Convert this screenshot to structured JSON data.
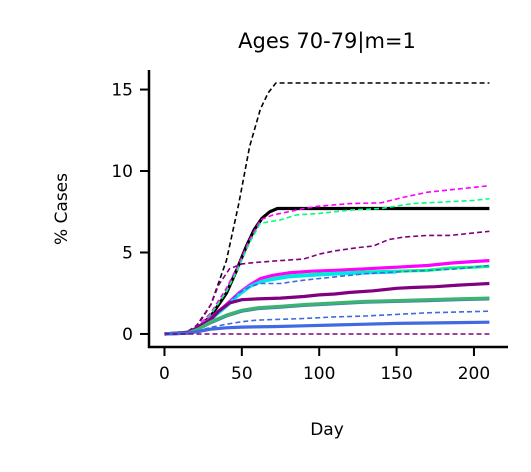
{
  "chart_data": {
    "type": "line",
    "title": "Ages 70-79|m=1",
    "xlabel": "Day",
    "ylabel": "% Cases",
    "xlim": [
      -10,
      222
    ],
    "ylim": [
      -0.8,
      16.2
    ],
    "xticks": [
      0,
      50,
      100,
      150,
      200
    ],
    "yticks": [
      0,
      5,
      10,
      15
    ],
    "grid": false,
    "legend": "none",
    "series": [
      {
        "color": "#000000",
        "style": "dashed",
        "points": [
          [
            0,
            0
          ],
          [
            14,
            0.1
          ],
          [
            20,
            0.4
          ],
          [
            30,
            1.8
          ],
          [
            40,
            4.5
          ],
          [
            48,
            8
          ],
          [
            55,
            11.5
          ],
          [
            62,
            13.8
          ],
          [
            67,
            14.8
          ],
          [
            72,
            15.4
          ],
          [
            80,
            15.4
          ],
          [
            210,
            15.4
          ]
        ]
      },
      {
        "color": "#000000",
        "style": "solid",
        "points": [
          [
            0,
            0
          ],
          [
            15,
            0.1
          ],
          [
            22,
            0.4
          ],
          [
            30,
            1.1
          ],
          [
            40,
            2.5
          ],
          [
            47,
            4.0
          ],
          [
            53,
            5.4
          ],
          [
            58,
            6.4
          ],
          [
            63,
            7.1
          ],
          [
            68,
            7.5
          ],
          [
            73,
            7.7
          ],
          [
            100,
            7.7
          ],
          [
            150,
            7.7
          ],
          [
            210,
            7.7
          ]
        ]
      },
      {
        "color": "#ff00ff",
        "style": "dashed",
        "points": [
          [
            0,
            0
          ],
          [
            15,
            0.1
          ],
          [
            22,
            0.5
          ],
          [
            30,
            1.3
          ],
          [
            40,
            2.8
          ],
          [
            48,
            4.3
          ],
          [
            55,
            5.8
          ],
          [
            62,
            7.0
          ],
          [
            70,
            7.3
          ],
          [
            80,
            7.5
          ],
          [
            90,
            7.7
          ],
          [
            100,
            7.85
          ],
          [
            120,
            8.0
          ],
          [
            140,
            8.05
          ],
          [
            155,
            8.4
          ],
          [
            170,
            8.7
          ],
          [
            185,
            8.85
          ],
          [
            200,
            9.0
          ],
          [
            210,
            9.1
          ]
        ]
      },
      {
        "color": "#00ff7f",
        "style": "dashed",
        "points": [
          [
            0,
            0
          ],
          [
            15,
            0.1
          ],
          [
            22,
            0.4
          ],
          [
            30,
            1.2
          ],
          [
            40,
            2.6
          ],
          [
            48,
            4.1
          ],
          [
            55,
            5.6
          ],
          [
            62,
            6.8
          ],
          [
            75,
            7.0
          ],
          [
            85,
            7.3
          ],
          [
            100,
            7.4
          ],
          [
            120,
            7.6
          ],
          [
            140,
            7.7
          ],
          [
            160,
            8.0
          ],
          [
            180,
            8.1
          ],
          [
            200,
            8.2
          ],
          [
            210,
            8.3
          ]
        ]
      },
      {
        "color": "#800080",
        "style": "dashed",
        "points": [
          [
            0,
            0
          ],
          [
            14,
            0.1
          ],
          [
            22,
            0.6
          ],
          [
            30,
            1.8
          ],
          [
            35,
            3.0
          ],
          [
            42,
            4.0
          ],
          [
            50,
            4.3
          ],
          [
            60,
            4.4
          ],
          [
            75,
            4.5
          ],
          [
            90,
            4.6
          ],
          [
            100,
            4.9
          ],
          [
            110,
            5.1
          ],
          [
            125,
            5.3
          ],
          [
            135,
            5.4
          ],
          [
            145,
            5.8
          ],
          [
            155,
            5.95
          ],
          [
            170,
            6.05
          ],
          [
            185,
            6.05
          ],
          [
            200,
            6.2
          ],
          [
            210,
            6.3
          ]
        ]
      },
      {
        "color": "#ff00ff",
        "style": "solid",
        "points": [
          [
            0,
            0
          ],
          [
            15,
            0.1
          ],
          [
            22,
            0.4
          ],
          [
            30,
            1.0
          ],
          [
            40,
            1.8
          ],
          [
            48,
            2.5
          ],
          [
            55,
            3.0
          ],
          [
            62,
            3.4
          ],
          [
            70,
            3.6
          ],
          [
            80,
            3.75
          ],
          [
            95,
            3.85
          ],
          [
            110,
            3.9
          ],
          [
            130,
            4.0
          ],
          [
            150,
            4.1
          ],
          [
            170,
            4.2
          ],
          [
            185,
            4.35
          ],
          [
            200,
            4.45
          ],
          [
            210,
            4.5
          ]
        ]
      },
      {
        "color": "#00ff7f",
        "style": "solid",
        "points": [
          [
            0,
            0
          ],
          [
            15,
            0.1
          ],
          [
            22,
            0.4
          ],
          [
            30,
            0.9
          ],
          [
            40,
            1.7
          ],
          [
            48,
            2.4
          ],
          [
            55,
            2.9
          ],
          [
            62,
            3.2
          ],
          [
            70,
            3.4
          ],
          [
            80,
            3.55
          ],
          [
            95,
            3.65
          ],
          [
            110,
            3.72
          ],
          [
            130,
            3.8
          ],
          [
            150,
            3.85
          ],
          [
            170,
            3.9
          ],
          [
            185,
            4.05
          ],
          [
            200,
            4.1
          ],
          [
            210,
            4.15
          ]
        ]
      },
      {
        "color": "#00e5ee",
        "style": "solid",
        "points": [
          [
            0,
            0
          ],
          [
            15,
            0.1
          ],
          [
            22,
            0.35
          ],
          [
            30,
            0.9
          ],
          [
            40,
            1.7
          ],
          [
            48,
            2.4
          ],
          [
            55,
            2.9
          ],
          [
            62,
            3.2
          ],
          [
            70,
            3.35
          ],
          [
            80,
            3.5
          ],
          [
            95,
            3.6
          ],
          [
            110,
            3.68
          ],
          [
            130,
            3.75
          ],
          [
            150,
            3.8
          ]
        ]
      },
      {
        "color": "#4169e1",
        "style": "dashed",
        "points": [
          [
            0,
            0
          ],
          [
            15,
            0.1
          ],
          [
            22,
            0.4
          ],
          [
            30,
            1.0
          ],
          [
            40,
            1.8
          ],
          [
            48,
            2.5
          ],
          [
            55,
            2.9
          ],
          [
            62,
            3.1
          ],
          [
            75,
            3.1
          ],
          [
            90,
            3.3
          ],
          [
            110,
            3.5
          ],
          [
            130,
            3.7
          ],
          [
            150,
            3.8
          ],
          [
            170,
            3.9
          ],
          [
            190,
            4.0
          ],
          [
            210,
            4.2
          ]
        ]
      },
      {
        "color": "#800080",
        "style": "solid",
        "points": [
          [
            0,
            0
          ],
          [
            15,
            0.1
          ],
          [
            22,
            0.4
          ],
          [
            30,
            0.9
          ],
          [
            35,
            1.4
          ],
          [
            42,
            1.9
          ],
          [
            50,
            2.1
          ],
          [
            60,
            2.15
          ],
          [
            75,
            2.2
          ],
          [
            90,
            2.3
          ],
          [
            100,
            2.4
          ],
          [
            110,
            2.45
          ],
          [
            120,
            2.55
          ],
          [
            135,
            2.65
          ],
          [
            150,
            2.8
          ],
          [
            160,
            2.85
          ],
          [
            175,
            2.9
          ],
          [
            190,
            3.0
          ],
          [
            200,
            3.05
          ],
          [
            210,
            3.1
          ]
        ]
      },
      {
        "color": "#4682b4",
        "style": "solid",
        "points": [
          [
            0,
            0
          ],
          [
            15,
            0.05
          ],
          [
            22,
            0.3
          ],
          [
            30,
            0.7
          ],
          [
            40,
            1.1
          ],
          [
            50,
            1.4
          ],
          [
            60,
            1.55
          ],
          [
            75,
            1.65
          ],
          [
            90,
            1.75
          ],
          [
            110,
            1.85
          ],
          [
            130,
            1.95
          ],
          [
            150,
            2.0
          ],
          [
            170,
            2.05
          ],
          [
            190,
            2.1
          ],
          [
            210,
            2.15
          ]
        ]
      },
      {
        "color": "#3cb371",
        "style": "solid",
        "points": [
          [
            0,
            0
          ],
          [
            15,
            0.05
          ],
          [
            22,
            0.3
          ],
          [
            30,
            0.75
          ],
          [
            40,
            1.15
          ],
          [
            50,
            1.45
          ],
          [
            60,
            1.6
          ],
          [
            75,
            1.7
          ],
          [
            90,
            1.8
          ],
          [
            110,
            1.9
          ],
          [
            130,
            2.0
          ],
          [
            150,
            2.05
          ],
          [
            170,
            2.1
          ],
          [
            190,
            2.15
          ],
          [
            210,
            2.2
          ]
        ]
      },
      {
        "color": "#4169e1",
        "style": "dashed",
        "points": [
          [
            0,
            0
          ],
          [
            15,
            0.05
          ],
          [
            22,
            0.2
          ],
          [
            30,
            0.4
          ],
          [
            40,
            0.6
          ],
          [
            50,
            0.75
          ],
          [
            60,
            0.85
          ],
          [
            75,
            0.9
          ],
          [
            90,
            0.95
          ],
          [
            110,
            1.05
          ],
          [
            130,
            1.1
          ],
          [
            150,
            1.2
          ],
          [
            170,
            1.3
          ],
          [
            190,
            1.35
          ],
          [
            210,
            1.4
          ]
        ]
      },
      {
        "color": "#4169e1",
        "style": "solid",
        "points": [
          [
            0,
            0
          ],
          [
            15,
            0.05
          ],
          [
            22,
            0.15
          ],
          [
            30,
            0.3
          ],
          [
            40,
            0.38
          ],
          [
            50,
            0.42
          ],
          [
            70,
            0.45
          ],
          [
            90,
            0.5
          ],
          [
            110,
            0.55
          ],
          [
            130,
            0.6
          ],
          [
            150,
            0.65
          ],
          [
            170,
            0.67
          ],
          [
            190,
            0.7
          ],
          [
            210,
            0.72
          ]
        ]
      },
      {
        "color": "#800080",
        "style": "dashed",
        "points": [
          [
            0,
            0
          ],
          [
            210,
            0
          ]
        ]
      }
    ]
  }
}
